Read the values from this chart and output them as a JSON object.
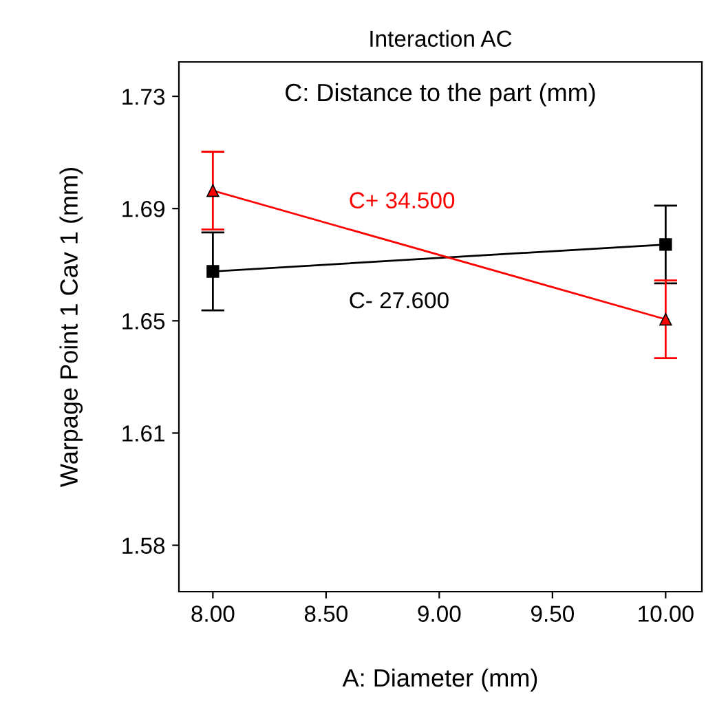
{
  "chart_data": {
    "type": "line",
    "title": "Interaction AC",
    "legend_title": "C: Distance to the part (mm)",
    "xlabel": "A: Diameter (mm)",
    "ylabel": "Warpage Point 1 Cav 1 (mm)",
    "x": [
      8.0,
      10.0
    ],
    "series": [
      {
        "name": "C- 27.600",
        "color": "#000000",
        "marker": "square",
        "values": [
          1.669,
          1.678
        ],
        "errors": [
          0.013,
          0.013
        ]
      },
      {
        "name": "C+ 34.500",
        "color": "#ff0000",
        "marker": "triangle",
        "values": [
          1.696,
          1.653
        ],
        "errors": [
          0.013,
          0.013
        ]
      }
    ],
    "xlim": [
      7.85,
      10.16
    ],
    "xticks": [
      {
        "value": 8.0,
        "label": "8.00"
      },
      {
        "value": 8.5,
        "label": "8.50"
      },
      {
        "value": 9.0,
        "label": "9.00"
      },
      {
        "value": 9.5,
        "label": "9.50"
      },
      {
        "value": 10.0,
        "label": "10.00"
      }
    ],
    "ylim": [
      1.562,
      1.739
    ],
    "yticks": [
      {
        "value": 1.5775,
        "label": "1.58"
      },
      {
        "value": 1.615,
        "label": "1.61"
      },
      {
        "value": 1.6525,
        "label": "1.65"
      },
      {
        "value": 1.69,
        "label": "1.69"
      },
      {
        "value": 1.7275,
        "label": "1.73"
      }
    ],
    "grid": false,
    "line_style": "solid"
  }
}
